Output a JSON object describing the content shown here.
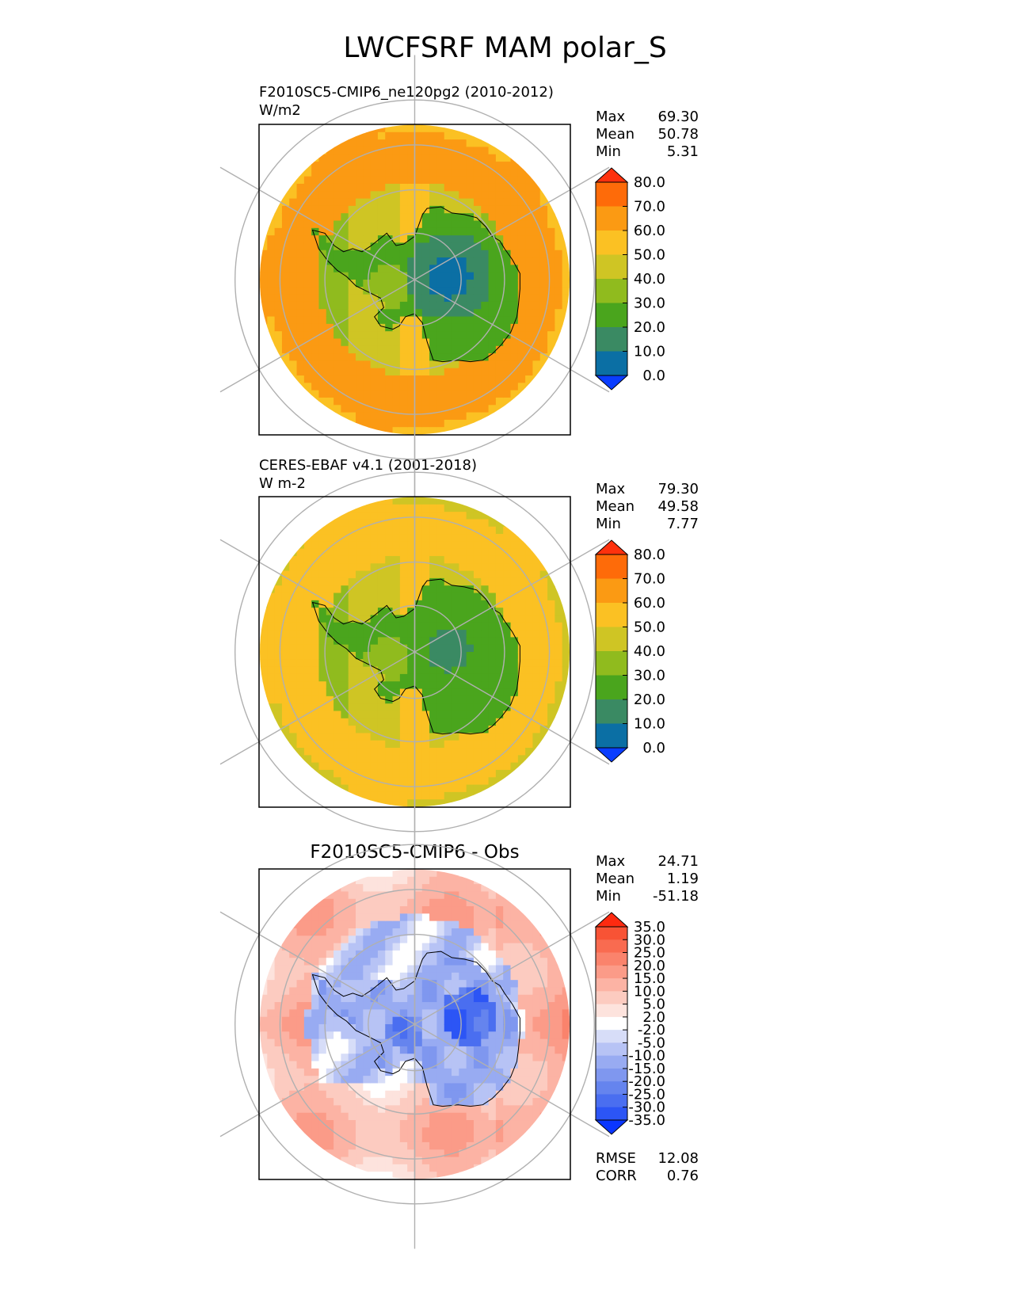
{
  "title": "LWCFSRF MAM polar_S",
  "panels": [
    {
      "id": "test",
      "title_line1": "F2010SC5-CMIP6_ne120pg2 (2010-2012)",
      "title_line2": "W/m2",
      "stats": [
        {
          "label": "Max",
          "value": "69.30"
        },
        {
          "label": "Mean",
          "value": "50.78"
        },
        {
          "label": "Min",
          "value": "5.31"
        }
      ],
      "colorbar_ticks": [
        "80.0",
        "70.0",
        "60.0",
        "50.0",
        "40.0",
        "30.0",
        "20.0",
        "10.0",
        "0.0"
      ]
    },
    {
      "id": "ref",
      "title_line1": "CERES-EBAF v4.1 (2001-2018)",
      "title_line2": "W m-2",
      "stats": [
        {
          "label": "Max",
          "value": "79.30"
        },
        {
          "label": "Mean",
          "value": "49.58"
        },
        {
          "label": "Min",
          "value": "7.77"
        }
      ],
      "colorbar_ticks": [
        "80.0",
        "70.0",
        "60.0",
        "50.0",
        "40.0",
        "30.0",
        "20.0",
        "10.0",
        "0.0"
      ]
    },
    {
      "id": "diff",
      "title": "F2010SC5-CMIP6 - Obs",
      "stats": [
        {
          "label": "Max",
          "value": "24.71"
        },
        {
          "label": "Mean",
          "value": "1.19"
        },
        {
          "label": "Min",
          "value": "-51.18"
        }
      ],
      "colorbar_ticks": [
        "35.0",
        "30.0",
        "25.0",
        "20.0",
        "15.0",
        "10.0",
        "5.0",
        "2.0",
        "-2.0",
        "-5.0",
        "-10.0",
        "-15.0",
        "-20.0",
        "-25.0",
        "-30.0",
        "-35.0"
      ],
      "metrics": [
        {
          "label": "RMSE",
          "value": "12.08"
        },
        {
          "label": "CORR",
          "value": "0.76"
        }
      ]
    }
  ],
  "chart_data": [
    {
      "type": "heatmap",
      "projection": "south-polar-stereographic",
      "title": "F2010SC5-CMIP6_ne120pg2 (2010-2012)",
      "units": "W/m2",
      "levels": [
        0,
        10,
        20,
        30,
        40,
        50,
        60,
        70,
        80
      ],
      "colors": [
        "#0a3dff",
        "#0b6fa4",
        "#3a8a63",
        "#4aa51d",
        "#90bb1e",
        "#cfc524",
        "#fbc123",
        "#fb9a13",
        "#fe6b09",
        "#fe310d"
      ],
      "extend": "both",
      "max": 69.3,
      "mean": 50.78,
      "min": 5.31,
      "pattern": {
        "ocean_base": 65,
        "antarctic_interior": 22,
        "east_plateau_min": 8,
        "coast": 45,
        "west_lobe": 30
      }
    },
    {
      "type": "heatmap",
      "projection": "south-polar-stereographic",
      "title": "CERES-EBAF v4.1 (2001-2018)",
      "units": "W m-2",
      "levels": [
        0,
        10,
        20,
        30,
        40,
        50,
        60,
        70,
        80
      ],
      "colors": [
        "#0a3dff",
        "#0b6fa4",
        "#3a8a63",
        "#4aa51d",
        "#90bb1e",
        "#cfc524",
        "#fbc123",
        "#fb9a13",
        "#fe6b09",
        "#fe310d"
      ],
      "extend": "both",
      "max": 79.3,
      "mean": 49.58,
      "min": 7.77,
      "pattern": {
        "ocean_base": 56,
        "antarctic_interior": 24,
        "east_plateau_min": 15,
        "coast": 45,
        "west_lobe": 30
      }
    },
    {
      "type": "heatmap",
      "projection": "south-polar-stereographic",
      "title": "F2010SC5-CMIP6 - Obs",
      "levels": [
        -35,
        -30,
        -25,
        -20,
        -15,
        -10,
        -5,
        -2,
        2,
        5,
        10,
        15,
        20,
        25,
        30,
        35
      ],
      "colors": [
        "#0a36ff",
        "#2c55f5",
        "#4a6ef0",
        "#6584ee",
        "#7f97ef",
        "#98abf2",
        "#b7c3f5",
        "#d7ddf8",
        "#ffffff",
        "#fde3dd",
        "#fccbc0",
        "#fcb3a4",
        "#fb9b88",
        "#fa836c",
        "#f96b50",
        "#f85335",
        "#fe2a10"
      ],
      "extend": "both",
      "max": 24.71,
      "mean": 1.19,
      "min": -51.18,
      "rmse": 12.08,
      "corr": 0.76,
      "pattern": {
        "ocean_base": 9,
        "antarctic_interior": -12,
        "east_plateau_min": -28,
        "coast": -6,
        "west_lobe": -20
      }
    }
  ]
}
